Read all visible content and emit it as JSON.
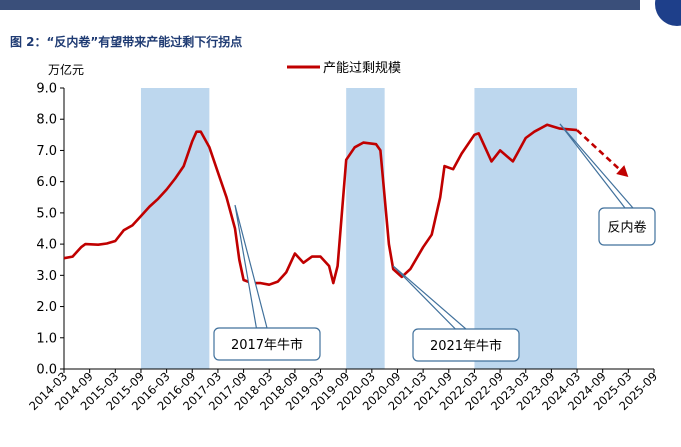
{
  "figure_title": "图 2：“反内卷”有望带来产能过剩下行拐点",
  "source_text": "",
  "chart_data": {
    "type": "line",
    "ylabel": "万亿元",
    "ylim": [
      0,
      9
    ],
    "yticks": [
      "0.0",
      "1.0",
      "2.0",
      "3.0",
      "4.0",
      "5.0",
      "6.0",
      "7.0",
      "8.0",
      "9.0"
    ],
    "x_ticks": [
      "2014-03",
      "2014-09",
      "2015-03",
      "2015-09",
      "2016-03",
      "2016-09",
      "2017-03",
      "2017-09",
      "2018-03",
      "2018-09",
      "2019-03",
      "2019-09",
      "2020-03",
      "2020-09",
      "2021-03",
      "2021-09",
      "2022-03",
      "2022-09",
      "2023-03",
      "2023-09",
      "2024-03",
      "2024-09",
      "2025-03",
      "2025-09"
    ],
    "legend_position": "top-center",
    "grid": false,
    "series": [
      {
        "name": "产能过剩规模",
        "color": "#c00000",
        "points": [
          [
            "2014-03",
            3.55
          ],
          [
            "2014-05",
            3.6
          ],
          [
            "2014-07",
            3.9
          ],
          [
            "2014-08",
            4.0
          ],
          [
            "2014-11",
            3.98
          ],
          [
            "2015-01",
            4.02
          ],
          [
            "2015-03",
            4.1
          ],
          [
            "2015-05",
            4.45
          ],
          [
            "2015-07",
            4.6
          ],
          [
            "2015-09",
            4.9
          ],
          [
            "2015-11",
            5.2
          ],
          [
            "2016-01",
            5.45
          ],
          [
            "2016-03",
            5.75
          ],
          [
            "2016-05",
            6.1
          ],
          [
            "2016-07",
            6.5
          ],
          [
            "2016-09",
            7.3
          ],
          [
            "2016-10",
            7.6
          ],
          [
            "2016-11",
            7.6
          ],
          [
            "2017-01",
            7.1
          ],
          [
            "2017-03",
            6.3
          ],
          [
            "2017-05",
            5.5
          ],
          [
            "2017-07",
            4.5
          ],
          [
            "2017-08",
            3.5
          ],
          [
            "2017-09",
            2.85
          ],
          [
            "2017-11",
            2.75
          ],
          [
            "2018-01",
            2.75
          ],
          [
            "2018-03",
            2.7
          ],
          [
            "2018-05",
            2.8
          ],
          [
            "2018-07",
            3.1
          ],
          [
            "2018-09",
            3.7
          ],
          [
            "2018-11",
            3.4
          ],
          [
            "2019-01",
            3.6
          ],
          [
            "2019-03",
            3.6
          ],
          [
            "2019-05",
            3.3
          ],
          [
            "2019-06",
            2.75
          ],
          [
            "2019-07",
            3.3
          ],
          [
            "2019-09",
            6.7
          ],
          [
            "2019-11",
            7.1
          ],
          [
            "2020-01",
            7.25
          ],
          [
            "2020-04",
            7.2
          ],
          [
            "2020-05",
            7.0
          ],
          [
            "2020-07",
            4.0
          ],
          [
            "2020-08",
            3.2
          ],
          [
            "2020-10",
            2.95
          ],
          [
            "2020-12",
            3.2
          ],
          [
            "2021-03",
            3.9
          ],
          [
            "2021-05",
            4.3
          ],
          [
            "2021-07",
            5.5
          ],
          [
            "2021-08",
            6.5
          ],
          [
            "2021-10",
            6.4
          ],
          [
            "2021-12",
            6.9
          ],
          [
            "2022-03",
            7.5
          ],
          [
            "2022-04",
            7.55
          ],
          [
            "2022-07",
            6.65
          ],
          [
            "2022-09",
            7.0
          ],
          [
            "2022-12",
            6.65
          ],
          [
            "2023-01",
            6.9
          ],
          [
            "2023-03",
            7.4
          ],
          [
            "2023-05",
            7.6
          ],
          [
            "2023-08",
            7.82
          ],
          [
            "2023-11",
            7.7
          ],
          [
            "2024-03",
            7.65
          ]
        ]
      }
    ],
    "forecast": {
      "color": "#c00000",
      "style": "dashed",
      "points": [
        [
          "2024-03",
          7.65
        ],
        [
          "2025-03",
          6.15
        ]
      ]
    },
    "shaded_periods": [
      {
        "start": "2015-09",
        "end": "2017-01"
      },
      {
        "start": "2019-09",
        "end": "2020-06"
      },
      {
        "start": "2022-03",
        "end": "2024-03"
      }
    ],
    "annotations": [
      {
        "text": "2017年牛市",
        "point_date": "2017-07",
        "point_value": 5.25
      },
      {
        "text": "2021年牛市",
        "point_date": "2020-08",
        "point_value": 3.3
      },
      {
        "text": "反内卷",
        "point_date": "2023-11",
        "point_value": 7.85
      }
    ]
  }
}
